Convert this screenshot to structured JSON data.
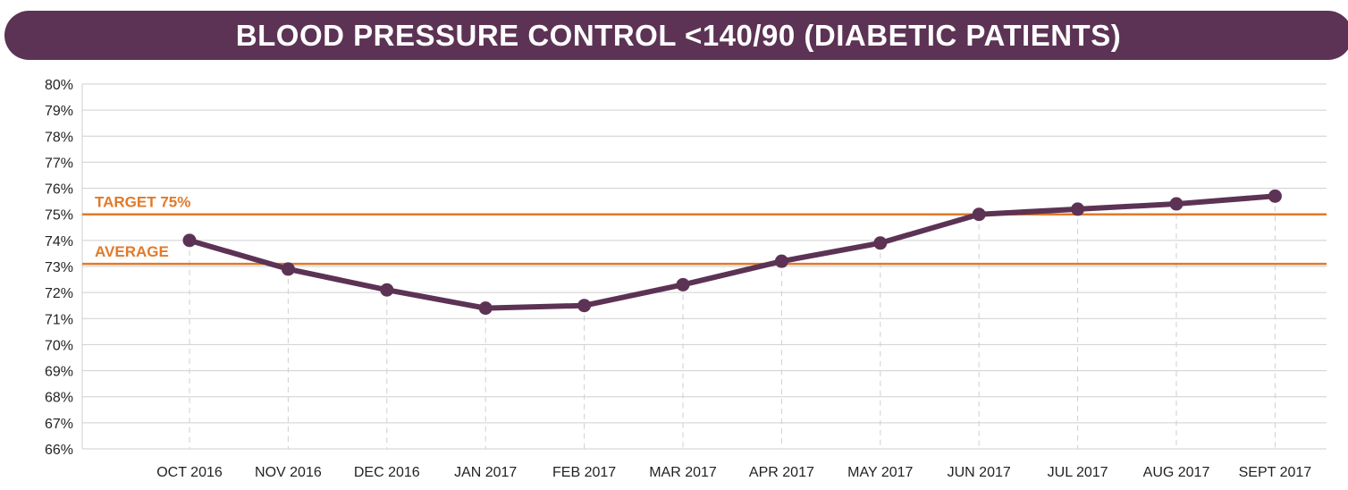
{
  "title": "BLOOD PRESSURE CONTROL <140/90 (DIABETIC PATIENTS)",
  "colors": {
    "title_bg": "#5c3354",
    "line": "#5c3354",
    "reference": "#e07a2a",
    "grid": "#cfcfcf"
  },
  "chart_data": {
    "type": "line",
    "title": "BLOOD PRESSURE CONTROL <140/90 (DIABETIC PATIENTS)",
    "categories": [
      "OCT 2016",
      "NOV 2016",
      "DEC 2016",
      "JAN 2017",
      "FEB 2017",
      "MAR 2017",
      "APR 2017",
      "MAY 2017",
      "JUN 2017",
      "JUL 2017",
      "AUG 2017",
      "SEPT 2017"
    ],
    "series": [
      {
        "values": [
          74.0,
          72.9,
          72.1,
          71.4,
          71.5,
          72.3,
          73.2,
          73.9,
          75.0,
          75.2,
          75.4,
          75.7
        ]
      }
    ],
    "ylim": [
      66,
      80
    ],
    "yticks": [
      "66%",
      "67%",
      "68%",
      "69%",
      "70%",
      "71%",
      "72%",
      "73%",
      "74%",
      "75%",
      "76%",
      "77%",
      "78%",
      "79%",
      "80%"
    ],
    "reference_lines": [
      {
        "label": "TARGET 75%",
        "value": 75
      },
      {
        "label": "AVERAGE",
        "value": 73.1
      }
    ],
    "grid": true
  }
}
